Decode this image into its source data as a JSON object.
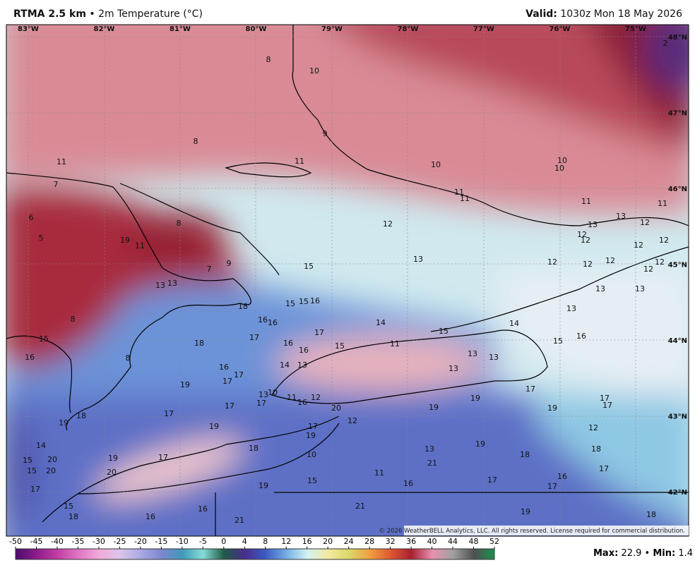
{
  "header": {
    "product": "RTMA 2.5 km",
    "separator": "•",
    "field": "2m Temperature (°C)",
    "valid_label": "Valid:",
    "valid_time": "1030z Mon 18 May 2026"
  },
  "longitudes": [
    "83°W",
    "82°W",
    "81°W",
    "80°W",
    "79°W",
    "78°W",
    "77°W",
    "76°W",
    "75°W"
  ],
  "latitudes": [
    "48°N",
    "47°N",
    "46°N",
    "45°N",
    "44°N",
    "43°N",
    "42°N"
  ],
  "stations": [
    2,
    8,
    10,
    8,
    9,
    11,
    11,
    10,
    10,
    10,
    7,
    11,
    11,
    11,
    11,
    6,
    8,
    12,
    13,
    12,
    13,
    5,
    19,
    11,
    12,
    12,
    12,
    12,
    7,
    9,
    15,
    13,
    12,
    12,
    12,
    12,
    12,
    13,
    13,
    18,
    15,
    15,
    16,
    13,
    13,
    13,
    8,
    16,
    16,
    14,
    17,
    15,
    14,
    15,
    18,
    17,
    16,
    15,
    11,
    15,
    16,
    16,
    8,
    16,
    13,
    13,
    13,
    16,
    17,
    14,
    13,
    17,
    19,
    13,
    10,
    11,
    16,
    12,
    17,
    17,
    17,
    20,
    19,
    19,
    19,
    17,
    17,
    17,
    18,
    19,
    19,
    17,
    12,
    19,
    12,
    14,
    18,
    13,
    19,
    18,
    18,
    15,
    20,
    19,
    17,
    10,
    21,
    17,
    15,
    20,
    20,
    11,
    15,
    16,
    17,
    16,
    17,
    17,
    19,
    21,
    15,
    16,
    19,
    18,
    16,
    21,
    18,
    15
  ],
  "copyright": "© 2026 WeatherBELL Analytics, LLC. All rights reserved. License required for commercial distribution.",
  "colorbar": {
    "ticks": [
      -50,
      -45,
      -40,
      -35,
      -30,
      -25,
      -20,
      -15,
      -10,
      -5,
      0,
      4,
      8,
      12,
      16,
      20,
      24,
      28,
      32,
      36,
      40,
      44,
      48,
      52
    ],
    "colors": [
      "#4a0e6e",
      "#8e1c8c",
      "#c13ea3",
      "#e074c3",
      "#f2aad9",
      "#dcc6ea",
      "#a9a9e2",
      "#7f86d0",
      "#3f9ab8",
      "#86dcd8",
      "#1f5a48",
      "#4a2c8c",
      "#3c5cc4",
      "#74aee4",
      "#d2f2f2",
      "#f3eaa2",
      "#d8d86a",
      "#f0a040",
      "#e05830",
      "#a82030",
      "#e890b0",
      "#a0a0a0",
      "#505050",
      "#1a9050"
    ]
  },
  "stats": {
    "max_label": "Max:",
    "max": 22.9,
    "separator": "•",
    "min_label": "Min:",
    "min": 1.4
  }
}
